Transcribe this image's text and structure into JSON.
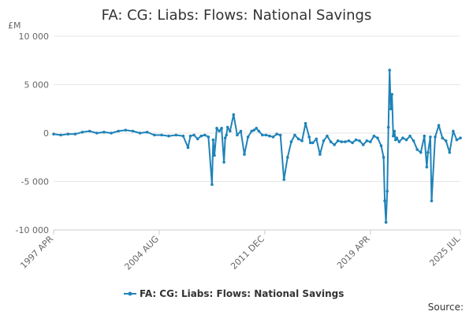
{
  "chart_data": {
    "type": "line",
    "title": "FA: CG: Liabs: Flows: National Savings",
    "unit_label": "£M",
    "source_label": "Source:",
    "xlabel": "",
    "ylabel": "",
    "ylim": [
      -10000,
      10000
    ],
    "yticks": [
      10000,
      5000,
      0,
      -5000,
      -10000
    ],
    "ytick_labels": [
      "10 000",
      "5 000",
      "0",
      "-5 000",
      "-10 000"
    ],
    "xlim": [
      "1997-04",
      "2025-07"
    ],
    "xticks": [
      "1997-04",
      "2004-08",
      "2011-12",
      "2019-04",
      "2025-07"
    ],
    "xtick_labels": [
      "1997 APR",
      "2004 AUG",
      "2011 DEC",
      "2019 APR",
      "2025 JUL"
    ],
    "grid": "horizontal",
    "legend_position": "bottom-center",
    "colors": {
      "series": "#1f83b8",
      "text": "#333333",
      "axis_text": "#666666"
    },
    "series": [
      {
        "name": "FA: CG: Liabs: Flows: National Savings",
        "x": [
          "1997-04",
          "1997-10",
          "1998-04",
          "1998-10",
          "1999-04",
          "1999-10",
          "2000-04",
          "2000-10",
          "2001-04",
          "2001-10",
          "2002-04",
          "2002-10",
          "2003-04",
          "2003-10",
          "2004-04",
          "2004-10",
          "2005-04",
          "2005-10",
          "2006-04",
          "2006-08",
          "2006-10",
          "2007-01",
          "2007-04",
          "2007-07",
          "2007-10",
          "2008-01",
          "2008-04",
          "2008-05",
          "2008-06",
          "2008-08",
          "2008-10",
          "2008-12",
          "2009-02",
          "2009-03",
          "2009-04",
          "2009-05",
          "2009-07",
          "2009-10",
          "2010-01",
          "2010-04",
          "2010-07",
          "2010-10",
          "2011-01",
          "2011-03",
          "2011-05",
          "2011-07",
          "2011-10",
          "2012-01",
          "2012-04",
          "2012-07",
          "2012-10",
          "2013-01",
          "2013-04",
          "2013-07",
          "2013-10",
          "2014-01",
          "2014-04",
          "2014-07",
          "2014-10",
          "2015-01",
          "2015-02",
          "2015-04",
          "2015-07",
          "2015-10",
          "2016-01",
          "2016-04",
          "2016-07",
          "2016-10",
          "2017-01",
          "2017-04",
          "2017-07",
          "2017-10",
          "2018-01",
          "2018-04",
          "2018-07",
          "2018-10",
          "2019-01",
          "2019-04",
          "2019-07",
          "2019-10",
          "2020-01",
          "2020-03",
          "2020-04",
          "2020-05",
          "2020-06",
          "2020-07",
          "2020-08",
          "2020-09",
          "2020-10",
          "2020-11",
          "2020-12",
          "2021-01",
          "2021-02",
          "2021-04",
          "2021-07",
          "2021-10",
          "2022-01",
          "2022-04",
          "2022-07",
          "2022-10",
          "2023-01",
          "2023-03",
          "2023-04",
          "2023-06",
          "2023-07",
          "2023-10",
          "2024-01",
          "2024-04",
          "2024-07",
          "2024-10",
          "2025-01",
          "2025-04",
          "2025-07"
        ],
        "values": [
          -100,
          -200,
          -100,
          -100,
          100,
          200,
          0,
          100,
          0,
          200,
          300,
          200,
          0,
          100,
          -200,
          -200,
          -300,
          -200,
          -300,
          -1500,
          -300,
          -200,
          -600,
          -300,
          -200,
          -400,
          -5300,
          -700,
          -2300,
          500,
          200,
          500,
          -3000,
          -500,
          -200,
          600,
          200,
          1900,
          -200,
          200,
          -2200,
          -400,
          200,
          300,
          500,
          200,
          -200,
          -200,
          -300,
          -400,
          -100,
          -200,
          -4800,
          -2500,
          -900,
          -200,
          -600,
          -800,
          1000,
          -400,
          -1000,
          -1000,
          -600,
          -2200,
          -800,
          -300,
          -900,
          -1200,
          -800,
          -900,
          -900,
          -800,
          -1000,
          -700,
          -800,
          -1200,
          -800,
          -900,
          -300,
          -500,
          -1300,
          -2500,
          -7000,
          -9200,
          -6000,
          600,
          6500,
          2500,
          4000,
          -300,
          200,
          -700,
          -500,
          -900,
          -500,
          -700,
          -300,
          -800,
          -1700,
          -2000,
          -300,
          -3500,
          -2000,
          -400,
          -7000,
          -400,
          800,
          -500,
          -800,
          -2000,
          200,
          -700,
          -500
        ]
      }
    ]
  }
}
